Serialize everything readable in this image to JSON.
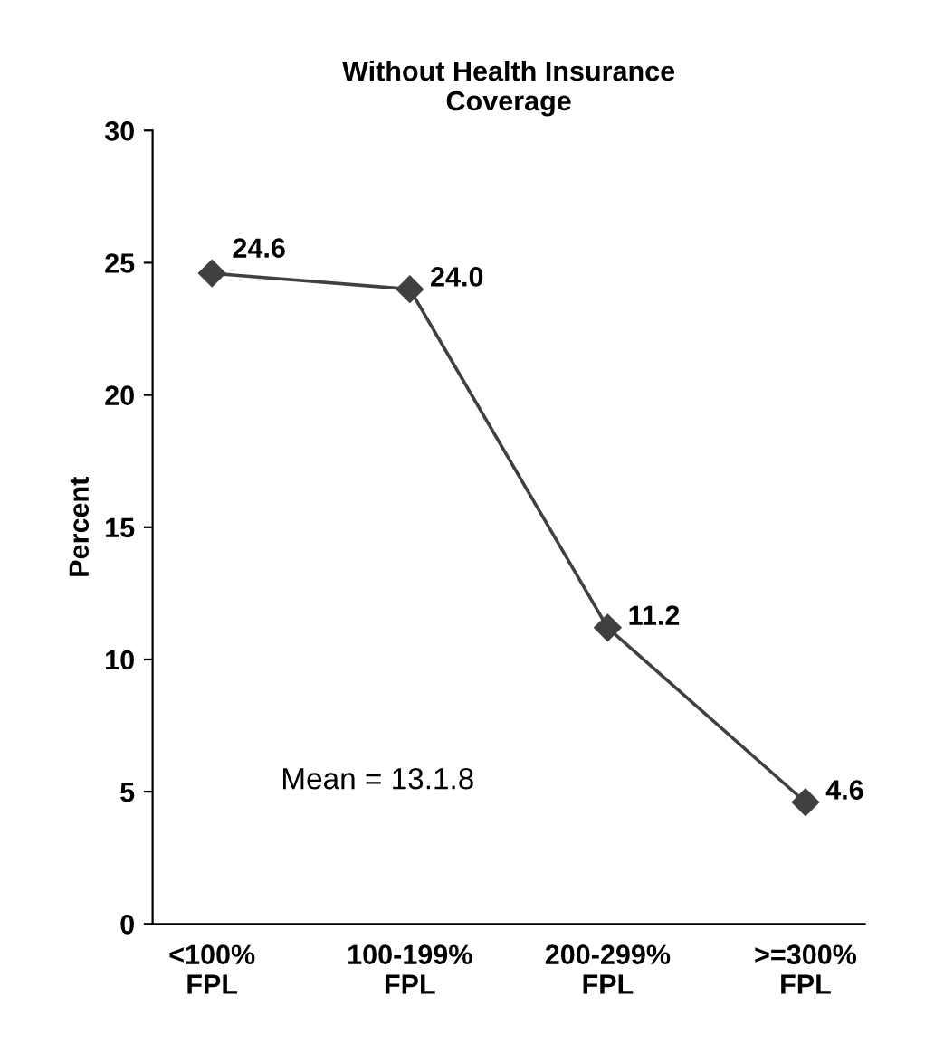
{
  "chart_data": {
    "type": "line",
    "title": "Without Health Insurance\nCoverage",
    "ylabel": "Percent",
    "categories": [
      "<100%\nFPL",
      "100-199%\nFPL",
      "200-299%\nFPL",
      ">=300%\nFPL"
    ],
    "series": [
      {
        "color": "#404040",
        "values": [
          24.6,
          24.0,
          11.2,
          4.6
        ],
        "value_labels": [
          "24.6",
          "24.0",
          "11.2",
          "4.6"
        ]
      }
    ],
    "ylim": [
      0,
      30
    ],
    "yticks": [
      0,
      5,
      10,
      15,
      20,
      25,
      30
    ],
    "marker": "diamond",
    "line_style": "solid",
    "grid": false,
    "annotations": [
      "Mean = 13.1.8"
    ]
  }
}
